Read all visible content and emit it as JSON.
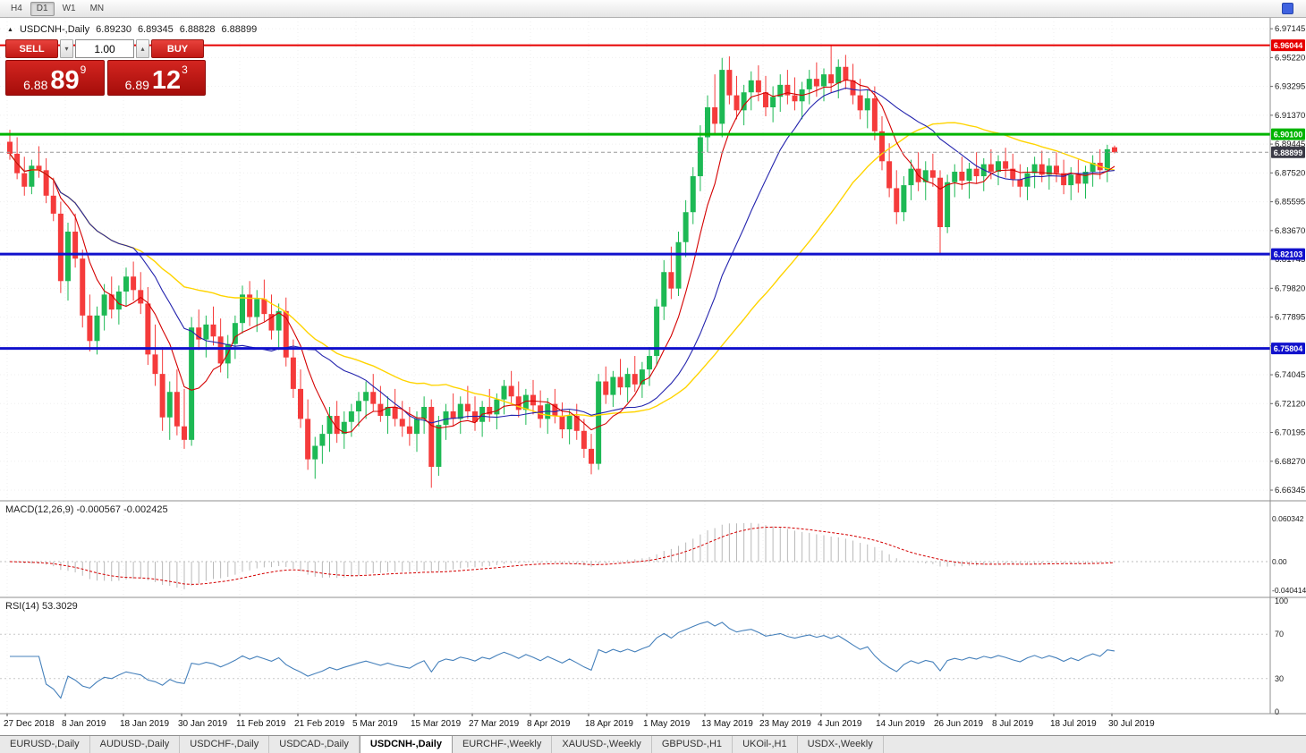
{
  "colors": {
    "candle_up": "#1db954",
    "candle_down": "#f53b3b",
    "ma_fast": "#d40000",
    "ma_mid": "#2323ad",
    "ma_slow": "#ffd400",
    "macd_hist": "#b9b9b9",
    "macd_signal": "#d40000",
    "rsi_line": "#4580bb",
    "grid": "#efefef",
    "axis_text": "#1a1a1a"
  },
  "icons": {
    "symbol_marker": "▲",
    "spin_up": "▴",
    "spin_down": "▾"
  },
  "toolbar": {
    "timeframes": [
      "H4",
      "D1",
      "W1",
      "MN"
    ],
    "active": "D1"
  },
  "chart_header": {
    "symbol": "USDCNH-,Daily",
    "open": "6.89230",
    "high": "6.89345",
    "low": "6.88828",
    "close": "6.88899"
  },
  "trade_panel": {
    "sell_label": "SELL",
    "buy_label": "BUY",
    "volume": "1.00",
    "sell_price": {
      "base": "6.88",
      "big": "89",
      "sup": "9"
    },
    "buy_price": {
      "base": "6.89",
      "big": "12",
      "sup": "3"
    }
  },
  "price_axis": {
    "tick_labels": [
      "6.97145",
      "6.95220",
      "6.93295",
      "6.91370",
      "6.89445",
      "6.87520",
      "6.85595",
      "6.83670",
      "6.81745",
      "6.79820",
      "6.77895",
      "6.75970",
      "6.74045",
      "6.72120",
      "6.70195",
      "6.68270",
      "6.66345"
    ]
  },
  "hlines": [
    {
      "price": 6.96044,
      "label": "6.96044",
      "color": "#e60000",
      "width": 2
    },
    {
      "price": 6.901,
      "label": "6.90100",
      "color": "#00b400",
      "width": 3
    },
    {
      "price": 6.82103,
      "label": "6.82103",
      "color": "#1111cc",
      "width": 3
    },
    {
      "price": 6.75804,
      "label": "6.75804",
      "color": "#1111cc",
      "width": 3
    }
  ],
  "current_price": {
    "value": 6.88899,
    "label": "6.88899",
    "badge_color": "#3a3a46",
    "line_color": "#9a9a9a"
  },
  "indicators": {
    "macd": {
      "label": "MACD(12,26,9) -0.000567 -0.002425",
      "params": [
        12,
        26,
        9
      ],
      "axis": [
        {
          "label": "0.060342",
          "value": 0.060342
        },
        {
          "label": "0.00",
          "value": 0
        },
        {
          "label": "-0.040414",
          "value": -0.040414
        }
      ]
    },
    "rsi": {
      "label": "RSI(14) 53.3029",
      "period": 14,
      "levels": [
        70,
        30
      ],
      "axis": [
        {
          "label": "100",
          "value": 100
        },
        {
          "label": "70",
          "value": 70
        },
        {
          "label": "30",
          "value": 30
        },
        {
          "label": "0",
          "value": 0
        }
      ]
    }
  },
  "tabs": {
    "active_index": 4,
    "items": [
      "EURUSD-,Daily",
      "AUDUSD-,Daily",
      "USDCHF-,Daily",
      "USDCAD-,Daily",
      "USDCNH-,Daily",
      "EURCHF-,Weekly",
      "XAUUSD-,Weekly",
      "GBPUSD-,H1",
      "UKOil-,H1",
      "USDX-,Weekly"
    ]
  },
  "chart_data": {
    "type": "candlestick",
    "symbol": "USDCNH-",
    "timeframe": "Daily",
    "y_range": [
      6.6575,
      6.9775
    ],
    "x_label_every": 8,
    "x_labels": [
      "27 Dec 2018",
      "8 Jan 2019",
      "18 Jan 2019",
      "30 Jan 2019",
      "11 Feb 2019",
      "21 Feb 2019",
      "5 Mar 2019",
      "15 Mar 2019",
      "27 Mar 2019",
      "8 Apr 2019",
      "18 Apr 2019",
      "1 May 2019",
      "13 May 2019",
      "23 May 2019",
      "4 Jun 2019",
      "14 Jun 2019",
      "26 Jun 2019",
      "8 Jul 2019",
      "18 Jul 2019",
      "30 Jul 2019"
    ],
    "moving_averages": [
      {
        "name": "fast",
        "period": 7
      },
      {
        "name": "mid",
        "period": 18
      },
      {
        "name": "slow",
        "period": 36
      }
    ],
    "ohlc": [
      [
        6.896,
        6.904,
        6.884,
        6.888
      ],
      [
        6.888,
        6.899,
        6.871,
        6.875
      ],
      [
        6.875,
        6.886,
        6.86,
        6.866
      ],
      [
        6.866,
        6.884,
        6.861,
        6.88
      ],
      [
        6.88,
        6.893,
        6.872,
        6.877
      ],
      [
        6.877,
        6.885,
        6.855,
        6.86
      ],
      [
        6.86,
        6.872,
        6.843,
        6.848
      ],
      [
        6.848,
        6.856,
        6.795,
        6.803
      ],
      [
        6.803,
        6.842,
        6.79,
        6.836
      ],
      [
        6.836,
        6.848,
        6.812,
        6.818
      ],
      [
        6.818,
        6.824,
        6.772,
        6.78
      ],
      [
        6.78,
        6.794,
        6.756,
        6.763
      ],
      [
        6.763,
        6.786,
        6.754,
        6.78
      ],
      [
        6.78,
        6.801,
        6.77,
        6.794
      ],
      [
        6.794,
        6.806,
        6.778,
        6.784
      ],
      [
        6.784,
        6.8,
        6.774,
        6.796
      ],
      [
        6.796,
        6.812,
        6.786,
        6.806
      ],
      [
        6.806,
        6.816,
        6.79,
        6.797
      ],
      [
        6.797,
        6.809,
        6.781,
        6.788
      ],
      [
        6.788,
        6.799,
        6.747,
        6.754
      ],
      [
        6.754,
        6.774,
        6.733,
        6.741
      ],
      [
        6.741,
        6.759,
        6.703,
        6.712
      ],
      [
        6.712,
        6.736,
        6.697,
        6.729
      ],
      [
        6.729,
        6.744,
        6.7,
        6.706
      ],
      [
        6.706,
        6.731,
        6.691,
        6.697
      ],
      [
        6.697,
        6.779,
        6.693,
        6.772
      ],
      [
        6.772,
        6.784,
        6.757,
        6.764
      ],
      [
        6.764,
        6.78,
        6.752,
        6.774
      ],
      [
        6.774,
        6.786,
        6.76,
        6.766
      ],
      [
        6.766,
        6.778,
        6.742,
        6.748
      ],
      [
        6.748,
        6.767,
        6.738,
        6.761
      ],
      [
        6.761,
        6.78,
        6.751,
        6.775
      ],
      [
        6.775,
        6.8,
        6.768,
        6.794
      ],
      [
        6.794,
        6.803,
        6.773,
        6.779
      ],
      [
        6.779,
        6.797,
        6.769,
        6.791
      ],
      [
        6.791,
        6.804,
        6.776,
        6.781
      ],
      [
        6.781,
        6.794,
        6.764,
        6.77
      ],
      [
        6.77,
        6.788,
        6.757,
        6.783
      ],
      [
        6.783,
        6.792,
        6.746,
        6.752
      ],
      [
        6.752,
        6.764,
        6.725,
        6.731
      ],
      [
        6.731,
        6.744,
        6.705,
        6.711
      ],
      [
        6.711,
        6.724,
        6.677,
        6.684
      ],
      [
        6.684,
        6.699,
        6.671,
        6.693
      ],
      [
        6.693,
        6.707,
        6.681,
        6.701
      ],
      [
        6.701,
        6.719,
        6.689,
        6.713
      ],
      [
        6.713,
        6.723,
        6.695,
        6.701
      ],
      [
        6.701,
        6.716,
        6.691,
        6.709
      ],
      [
        6.709,
        6.721,
        6.699,
        6.716
      ],
      [
        6.716,
        6.729,
        6.706,
        6.723
      ],
      [
        6.723,
        6.736,
        6.711,
        6.729
      ],
      [
        6.729,
        6.741,
        6.716,
        6.721
      ],
      [
        6.721,
        6.733,
        6.709,
        6.713
      ],
      [
        6.713,
        6.726,
        6.701,
        6.719
      ],
      [
        6.719,
        6.731,
        6.706,
        6.711
      ],
      [
        6.711,
        6.723,
        6.699,
        6.706
      ],
      [
        6.706,
        6.719,
        6.693,
        6.701
      ],
      [
        6.701,
        6.716,
        6.689,
        6.711
      ],
      [
        6.711,
        6.726,
        6.701,
        6.719
      ],
      [
        6.719,
        6.724,
        6.665,
        6.679
      ],
      [
        6.679,
        6.713,
        6.673,
        6.707
      ],
      [
        6.707,
        6.721,
        6.697,
        6.716
      ],
      [
        6.716,
        6.728,
        6.706,
        6.711
      ],
      [
        6.711,
        6.726,
        6.701,
        6.721
      ],
      [
        6.721,
        6.733,
        6.711,
        6.716
      ],
      [
        6.716,
        6.726,
        6.703,
        6.709
      ],
      [
        6.709,
        6.723,
        6.699,
        6.719
      ],
      [
        6.719,
        6.731,
        6.709,
        6.714
      ],
      [
        6.714,
        6.728,
        6.704,
        6.724
      ],
      [
        6.724,
        6.737,
        6.714,
        6.733
      ],
      [
        6.733,
        6.743,
        6.721,
        6.726
      ],
      [
        6.726,
        6.736,
        6.712,
        6.717
      ],
      [
        6.717,
        6.731,
        6.707,
        6.727
      ],
      [
        6.727,
        6.737,
        6.714,
        6.72
      ],
      [
        6.72,
        6.73,
        6.705,
        6.711
      ],
      [
        6.711,
        6.725,
        6.701,
        6.721
      ],
      [
        6.721,
        6.731,
        6.708,
        6.713
      ],
      [
        6.713,
        6.722,
        6.698,
        6.704
      ],
      [
        6.704,
        6.717,
        6.694,
        6.713
      ],
      [
        6.713,
        6.721,
        6.697,
        6.703
      ],
      [
        6.703,
        6.711,
        6.685,
        6.691
      ],
      [
        6.691,
        6.701,
        6.674,
        6.681
      ],
      [
        6.681,
        6.741,
        6.677,
        6.736
      ],
      [
        6.736,
        6.746,
        6.721,
        6.727
      ],
      [
        6.727,
        6.743,
        6.719,
        6.739
      ],
      [
        6.739,
        6.751,
        6.727,
        6.732
      ],
      [
        6.732,
        6.745,
        6.722,
        6.741
      ],
      [
        6.741,
        6.753,
        6.729,
        6.734
      ],
      [
        6.734,
        6.749,
        6.725,
        6.744
      ],
      [
        6.744,
        6.759,
        6.733,
        6.753
      ],
      [
        6.753,
        6.791,
        6.747,
        6.786
      ],
      [
        6.786,
        6.817,
        6.777,
        6.809
      ],
      [
        6.809,
        6.826,
        6.791,
        6.798
      ],
      [
        6.798,
        6.836,
        6.793,
        6.829
      ],
      [
        6.829,
        6.857,
        6.819,
        6.849
      ],
      [
        6.849,
        6.879,
        6.841,
        6.873
      ],
      [
        6.873,
        6.907,
        6.863,
        6.899
      ],
      [
        6.899,
        6.927,
        6.889,
        6.919
      ],
      [
        6.919,
        6.941,
        6.901,
        6.908
      ],
      [
        6.908,
        6.952,
        6.899,
        6.944
      ],
      [
        6.944,
        6.953,
        6.921,
        6.927
      ],
      [
        6.927,
        6.94,
        6.911,
        6.917
      ],
      [
        6.917,
        6.934,
        6.907,
        6.929
      ],
      [
        6.929,
        6.943,
        6.917,
        6.937
      ],
      [
        6.937,
        6.947,
        6.923,
        6.929
      ],
      [
        6.929,
        6.94,
        6.913,
        6.919
      ],
      [
        6.919,
        6.933,
        6.909,
        6.926
      ],
      [
        6.926,
        6.941,
        6.916,
        6.934
      ],
      [
        6.934,
        6.944,
        6.921,
        6.927
      ],
      [
        6.927,
        6.939,
        6.917,
        6.923
      ],
      [
        6.923,
        6.936,
        6.911,
        6.931
      ],
      [
        6.931,
        6.944,
        6.921,
        6.938
      ],
      [
        6.938,
        6.949,
        6.926,
        6.933
      ],
      [
        6.933,
        6.945,
        6.923,
        6.941
      ],
      [
        6.941,
        6.9604,
        6.929,
        6.935
      ],
      [
        6.935,
        6.951,
        6.925,
        6.946
      ],
      [
        6.946,
        6.954,
        6.931,
        6.937
      ],
      [
        6.937,
        6.948,
        6.921,
        6.927
      ],
      [
        6.927,
        6.938,
        6.911,
        6.917
      ],
      [
        6.917,
        6.931,
        6.905,
        6.925
      ],
      [
        6.925,
        6.933,
        6.897,
        6.903
      ],
      [
        6.903,
        6.913,
        6.877,
        6.883
      ],
      [
        6.883,
        6.895,
        6.859,
        6.865
      ],
      [
        6.865,
        6.877,
        6.841,
        6.849
      ],
      [
        6.849,
        6.873,
        6.843,
        6.867
      ],
      [
        6.867,
        6.884,
        6.857,
        6.878
      ],
      [
        6.878,
        6.889,
        6.863,
        6.869
      ],
      [
        6.869,
        6.883,
        6.857,
        6.877
      ],
      [
        6.877,
        6.888,
        6.866,
        6.872
      ],
      [
        6.872,
        6.877,
        6.821,
        6.839
      ],
      [
        6.839,
        6.874,
        6.835,
        6.869
      ],
      [
        6.869,
        6.881,
        6.859,
        6.876
      ],
      [
        6.876,
        6.886,
        6.864,
        6.87
      ],
      [
        6.87,
        6.882,
        6.858,
        6.878
      ],
      [
        6.878,
        6.889,
        6.868,
        6.873
      ],
      [
        6.873,
        6.885,
        6.863,
        6.881
      ],
      [
        6.881,
        6.891,
        6.871,
        6.876
      ],
      [
        6.876,
        6.887,
        6.867,
        6.883
      ],
      [
        6.883,
        6.892,
        6.872,
        6.878
      ],
      [
        6.878,
        6.888,
        6.866,
        6.871
      ],
      [
        6.871,
        6.881,
        6.859,
        6.866
      ],
      [
        6.866,
        6.879,
        6.857,
        6.875
      ],
      [
        6.875,
        6.886,
        6.865,
        6.881
      ],
      [
        6.881,
        6.89,
        6.869,
        6.874
      ],
      [
        6.874,
        6.885,
        6.864,
        6.88
      ],
      [
        6.88,
        6.889,
        6.869,
        6.875
      ],
      [
        6.875,
        6.884,
        6.861,
        6.867
      ],
      [
        6.867,
        6.879,
        6.857,
        6.874
      ],
      [
        6.874,
        6.884,
        6.862,
        6.868
      ],
      [
        6.868,
        6.88,
        6.858,
        6.876
      ],
      [
        6.876,
        6.887,
        6.866,
        6.882
      ],
      [
        6.882,
        6.891,
        6.871,
        6.877
      ],
      [
        6.877,
        6.894,
        6.869,
        6.891
      ],
      [
        6.8923,
        6.89345,
        6.88828,
        6.88899
      ]
    ]
  }
}
